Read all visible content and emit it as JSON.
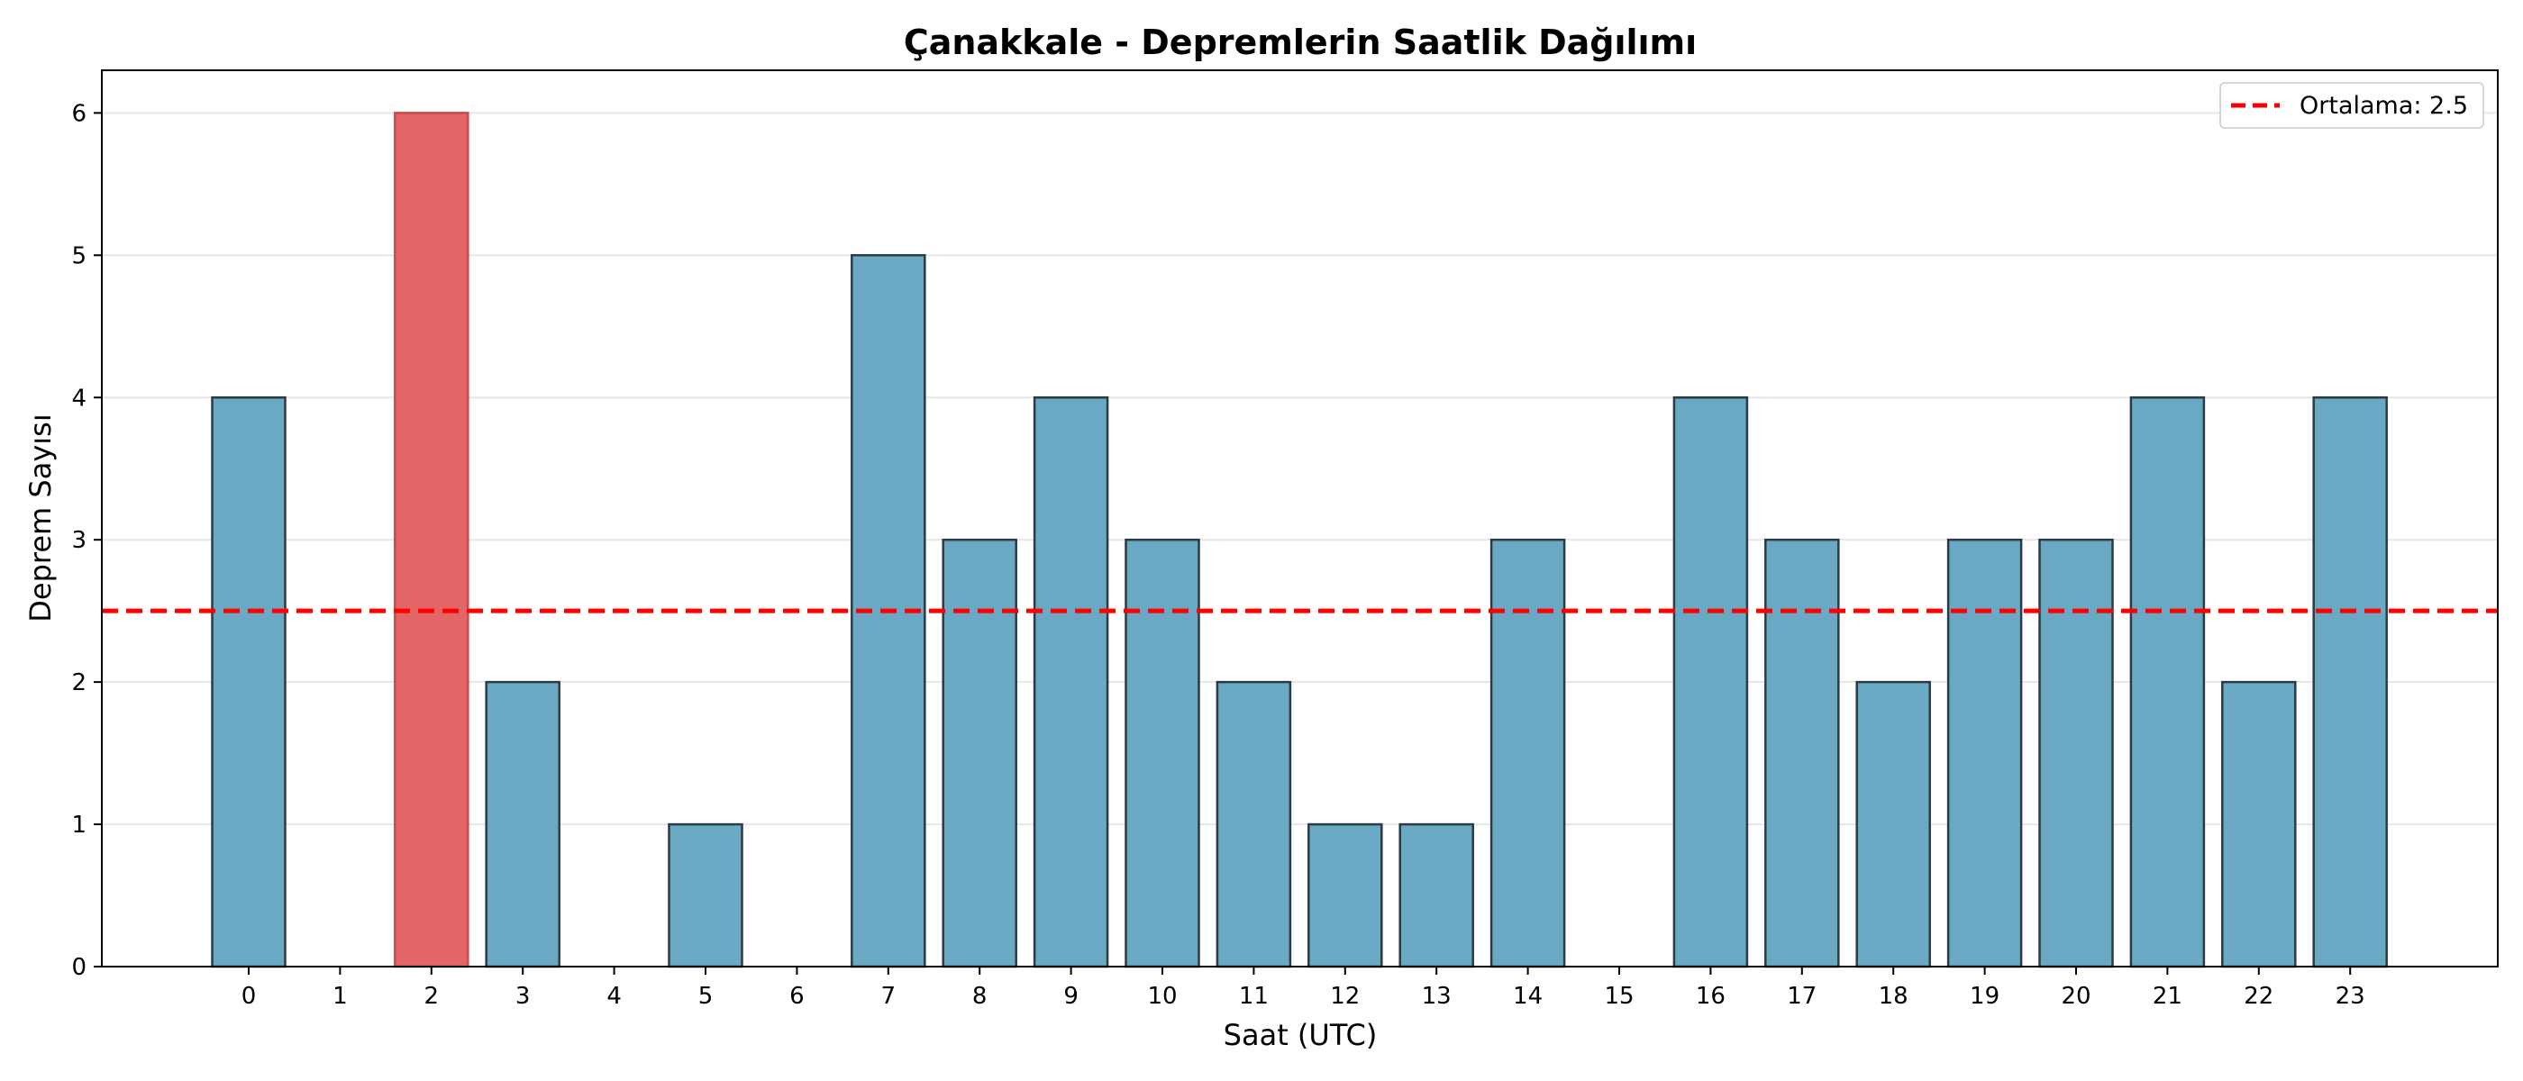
{
  "chart_data": {
    "type": "bar",
    "title": "Çanakkale - Depremlerin Saatlik Dağılımı",
    "xlabel": "Saat (UTC)",
    "ylabel": "Deprem Sayısı",
    "categories": [
      "0",
      "1",
      "2",
      "3",
      "4",
      "5",
      "6",
      "7",
      "8",
      "9",
      "10",
      "11",
      "12",
      "13",
      "14",
      "15",
      "16",
      "17",
      "18",
      "19",
      "20",
      "21",
      "22",
      "23"
    ],
    "values": [
      4,
      0,
      6,
      2,
      0,
      1,
      0,
      5,
      3,
      4,
      3,
      2,
      1,
      1,
      3,
      0,
      4,
      3,
      2,
      3,
      3,
      4,
      2,
      4
    ],
    "highlight_index": 2,
    "ylim": [
      0,
      6.3
    ],
    "yticks": [
      0,
      1,
      2,
      3,
      4,
      5,
      6
    ],
    "grid": "horizontal",
    "mean": 2.5,
    "legend": {
      "position": "top-right",
      "label": "Ortalama: 2.5"
    },
    "colors": {
      "bar": "#6aa9c4",
      "highlight": "#e36666",
      "edge": "#2b3a44",
      "mean_line": "#ff0000",
      "grid": "#e6e6e6"
    }
  }
}
